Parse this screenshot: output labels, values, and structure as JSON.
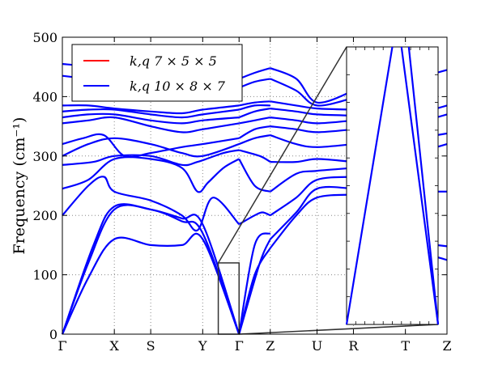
{
  "chart_data": {
    "type": "line",
    "title": "",
    "xlabel": "",
    "ylabel": "Frequency (cm⁻¹)",
    "ylim": [
      0,
      500
    ],
    "y_ticks": [
      0,
      100,
      200,
      300,
      400,
      500
    ],
    "x_ticks": [
      {
        "label": "Γ",
        "pos": 0
      },
      {
        "label": "X",
        "pos": 1
      },
      {
        "label": "S",
        "pos": 1.7
      },
      {
        "label": "Y",
        "pos": 2.7
      },
      {
        "label": "Γ",
        "pos": 3.4
      },
      {
        "label": "Z",
        "pos": 4.0
      },
      {
        "label": "U",
        "pos": 4.9
      },
      {
        "label": "R",
        "pos": 5.6
      },
      {
        "label": "T",
        "pos": 6.6
      },
      {
        "label": "Z",
        "pos": 7.4
      }
    ],
    "xlim": [
      0,
      7.4
    ],
    "grid": true,
    "legend_position": "top-left",
    "series": [
      {
        "name": "k,q 7 × 5 × 5",
        "color": "#ff0000"
      },
      {
        "name": "k,q 10 × 8 × 7",
        "color": "#0000ff"
      }
    ],
    "bands": [
      {
        "x": [
          0,
          0.5,
          1.0,
          1.7,
          2.3,
          2.7,
          3.4
        ],
        "y": [
          0,
          95,
          160,
          150,
          150,
          160,
          0
        ]
      },
      {
        "x": [
          0,
          0.5,
          1.0,
          1.7,
          2.3,
          2.7,
          3.4
        ],
        "y": [
          0,
          120,
          210,
          210,
          190,
          170,
          0
        ]
      },
      {
        "x": [
          0,
          0.6,
          1.0,
          1.7,
          2.3,
          2.7,
          3.4
        ],
        "y": [
          0,
          150,
          215,
          210,
          195,
          185,
          0
        ]
      },
      {
        "x": [
          0,
          0.5,
          0.8,
          1.0,
          1.7,
          2.3,
          2.6,
          2.9,
          3.4
        ],
        "y": [
          200,
          250,
          265,
          240,
          225,
          200,
          175,
          230,
          185
        ]
      },
      {
        "x": [
          0,
          0.5,
          1.0,
          1.7,
          2.3,
          2.6,
          2.8,
          3.1,
          3.4
        ],
        "y": [
          245,
          260,
          295,
          295,
          280,
          240,
          255,
          280,
          295
        ]
      },
      {
        "x": [
          0,
          0.6,
          1.0,
          1.7,
          2.3,
          2.6,
          3.1,
          3.4
        ],
        "y": [
          285,
          290,
          300,
          300,
          285,
          290,
          305,
          310
        ]
      },
      {
        "x": [
          0,
          0.5,
          1.0,
          1.7,
          2.3,
          2.7,
          3.4
        ],
        "y": [
          300,
          320,
          330,
          320,
          305,
          300,
          320
        ]
      },
      {
        "x": [
          0,
          0.4,
          0.8,
          1.2,
          1.7,
          2.3,
          2.7,
          3.4
        ],
        "y": [
          320,
          330,
          335,
          300,
          305,
          315,
          320,
          330
        ]
      },
      {
        "x": [
          0,
          0.5,
          1.0,
          1.7,
          2.3,
          2.7,
          3.4
        ],
        "y": [
          355,
          360,
          365,
          350,
          340,
          345,
          355
        ]
      },
      {
        "x": [
          0,
          0.5,
          1.0,
          1.7,
          2.3,
          2.7,
          3.4
        ],
        "y": [
          365,
          370,
          370,
          360,
          355,
          360,
          365
        ]
      },
      {
        "x": [
          0,
          0.5,
          1.0,
          1.7,
          2.3,
          2.7,
          3.4
        ],
        "y": [
          375,
          378,
          378,
          370,
          365,
          370,
          378
        ]
      },
      {
        "x": [
          0,
          0.5,
          1.0,
          1.7,
          2.3,
          2.7,
          3.4
        ],
        "y": [
          385,
          385,
          380,
          375,
          372,
          378,
          385
        ]
      },
      {
        "x": [
          0,
          0.5,
          1.0,
          1.7,
          2.3,
          2.7,
          3.4
        ],
        "y": [
          435,
          430,
          425,
          405,
          395,
          400,
          415
        ]
      },
      {
        "x": [
          0,
          0.5,
          1.0,
          1.7,
          2.3,
          2.7,
          3.4
        ],
        "y": [
          455,
          450,
          440,
          415,
          400,
          405,
          430
        ]
      },
      {
        "x": [
          3.4,
          3.7,
          4.0
        ],
        "y": [
          0,
          100,
          145
        ]
      },
      {
        "x": [
          3.4,
          3.8,
          4.0
        ],
        "y": [
          0,
          120,
          160
        ]
      },
      {
        "x": [
          3.4,
          3.7,
          4.0
        ],
        "y": [
          0,
          150,
          170
        ]
      },
      {
        "x": [
          3.4,
          3.7,
          3.85,
          4.0
        ],
        "y": [
          185,
          200,
          205,
          200
        ]
      },
      {
        "x": [
          3.4,
          3.7,
          4.0
        ],
        "y": [
          295,
          250,
          240
        ]
      },
      {
        "x": [
          3.4,
          3.8,
          4.0
        ],
        "y": [
          310,
          300,
          290
        ]
      },
      {
        "x": [
          3.4,
          3.7,
          4.0
        ],
        "y": [
          320,
          330,
          335
        ]
      },
      {
        "x": [
          3.4,
          3.7,
          4.0
        ],
        "y": [
          330,
          345,
          350
        ]
      },
      {
        "x": [
          3.4,
          3.7,
          4.0
        ],
        "y": [
          355,
          360,
          365
        ]
      },
      {
        "x": [
          3.4,
          3.7,
          4.0
        ],
        "y": [
          365,
          375,
          380
        ]
      },
      {
        "x": [
          3.4,
          3.7,
          4.0
        ],
        "y": [
          378,
          385,
          385
        ]
      },
      {
        "x": [
          3.4,
          3.7,
          4.0
        ],
        "y": [
          385,
          390,
          392
        ]
      },
      {
        "x": [
          3.4,
          3.7,
          4.0
        ],
        "y": [
          415,
          425,
          430
        ]
      },
      {
        "x": [
          3.4,
          3.7,
          4.0
        ],
        "y": [
          430,
          440,
          448
        ]
      },
      {
        "x": [
          4.0,
          4.5,
          4.9,
          5.6
        ],
        "y": [
          145,
          200,
          230,
          235
        ]
      },
      {
        "x": [
          4.0,
          4.5,
          4.9,
          5.6
        ],
        "y": [
          160,
          205,
          245,
          245
        ]
      },
      {
        "x": [
          4.0,
          4.5,
          4.9,
          5.6
        ],
        "y": [
          200,
          230,
          260,
          265
        ]
      },
      {
        "x": [
          4.0,
          4.5,
          4.9,
          5.6
        ],
        "y": [
          240,
          270,
          275,
          280
        ]
      },
      {
        "x": [
          4.0,
          4.5,
          4.9,
          5.6
        ],
        "y": [
          290,
          290,
          295,
          290
        ]
      },
      {
        "x": [
          4.0,
          4.5,
          4.9,
          5.6
        ],
        "y": [
          335,
          320,
          315,
          320
        ]
      },
      {
        "x": [
          4.0,
          4.5,
          4.9,
          5.6
        ],
        "y": [
          350,
          345,
          340,
          345
        ]
      },
      {
        "x": [
          4.0,
          4.5,
          4.9,
          5.6
        ],
        "y": [
          365,
          360,
          355,
          360
        ]
      },
      {
        "x": [
          4.0,
          4.5,
          4.9,
          5.6
        ],
        "y": [
          380,
          375,
          370,
          368
        ]
      },
      {
        "x": [
          4.0,
          4.5,
          4.9,
          5.6
        ],
        "y": [
          392,
          385,
          380,
          378
        ]
      },
      {
        "x": [
          4.0,
          4.5,
          4.9,
          5.6
        ],
        "y": [
          430,
          410,
          385,
          398
        ]
      },
      {
        "x": [
          4.0,
          4.5,
          4.9,
          5.6
        ],
        "y": [
          448,
          430,
          390,
          410
        ]
      }
    ],
    "right_bands": [
      {
        "x": [
          7.2,
          7.4
        ],
        "y": [
          130,
          125
        ]
      },
      {
        "x": [
          7.2,
          7.4
        ],
        "y": [
          150,
          148
        ]
      },
      {
        "x": [
          7.2,
          7.4
        ],
        "y": [
          240,
          240
        ]
      },
      {
        "x": [
          7.2,
          7.4
        ],
        "y": [
          315,
          320
        ]
      },
      {
        "x": [
          7.2,
          7.4
        ],
        "y": [
          335,
          338
        ]
      },
      {
        "x": [
          7.2,
          7.4
        ],
        "y": [
          365,
          370
        ]
      },
      {
        "x": [
          7.2,
          7.4
        ],
        "y": [
          380,
          385
        ]
      },
      {
        "x": [
          7.2,
          7.4
        ],
        "y": [
          440,
          445
        ]
      }
    ],
    "zoom_region": {
      "x0": 3.0,
      "x1": 3.4,
      "y0": 0,
      "y1": 120
    },
    "inset_lines": [
      {
        "x": [
          0,
          0.5
        ],
        "y": [
          0,
          1
        ]
      },
      {
        "x": [
          0.6,
          1.0
        ],
        "y": [
          1,
          0
        ]
      },
      {
        "x": [
          0.68,
          1.0
        ],
        "y": [
          1,
          0
        ]
      }
    ]
  }
}
